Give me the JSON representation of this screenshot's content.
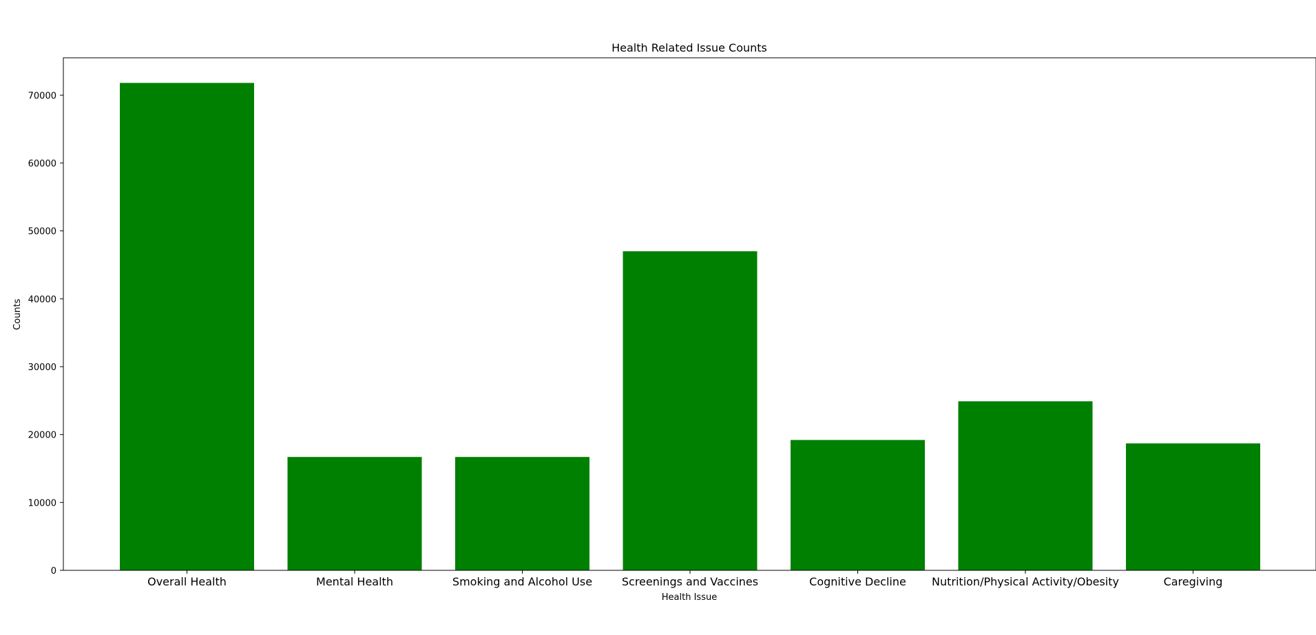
{
  "chart_data": {
    "type": "bar",
    "title": "Health Related Issue Counts",
    "xlabel": "Health Issue",
    "ylabel": "Counts",
    "categories": [
      "Overall Health",
      "Mental Health",
      "Smoking and Alcohol Use",
      "Screenings and Vaccines",
      "Cognitive Decline",
      "Nutrition/Physical Activity/Obesity",
      "Caregiving"
    ],
    "values": [
      71800,
      16700,
      16700,
      47000,
      19200,
      24900,
      18700
    ],
    "ylim": [
      0,
      75500
    ],
    "yticks": [
      0,
      10000,
      20000,
      30000,
      40000,
      50000,
      60000,
      70000
    ],
    "grid": false,
    "bar_color": "#008000"
  }
}
